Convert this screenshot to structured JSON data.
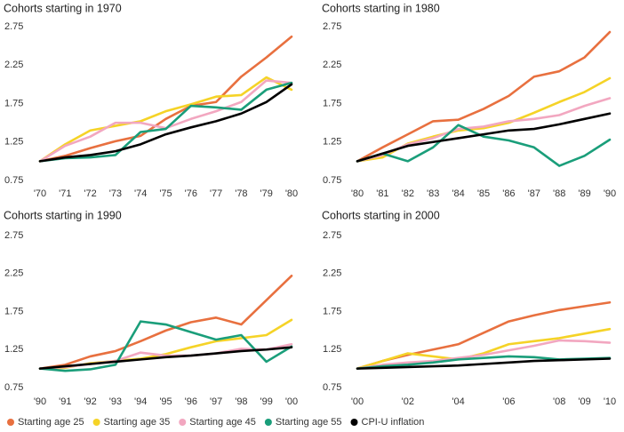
{
  "chart_data": [
    {
      "type": "line",
      "title": "Cohorts starting in 1970",
      "categories": [
        "'70",
        "'71",
        "'72",
        "'73",
        "'74",
        "'75",
        "'76",
        "'77",
        "'78",
        "'79",
        "'80"
      ],
      "ylim": [
        0.75,
        2.75
      ],
      "yticks": [
        0.75,
        1.25,
        1.75,
        2.25,
        2.75
      ],
      "series": [
        {
          "name": "Starting age 25",
          "color": "#e8703f",
          "values": [
            1.0,
            1.07,
            1.17,
            1.26,
            1.33,
            1.55,
            1.72,
            1.77,
            2.1,
            2.35,
            2.62
          ]
        },
        {
          "name": "Starting age 35",
          "color": "#f5d327",
          "values": [
            1.0,
            1.22,
            1.4,
            1.46,
            1.52,
            1.65,
            1.74,
            1.84,
            1.86,
            2.09,
            1.93
          ]
        },
        {
          "name": "Starting age 45",
          "color": "#f2a7c0",
          "values": [
            1.0,
            1.2,
            1.32,
            1.5,
            1.5,
            1.43,
            1.55,
            1.65,
            1.77,
            2.05,
            2.02
          ]
        },
        {
          "name": "Starting age 55",
          "color": "#1a9e7a",
          "values": [
            1.0,
            1.04,
            1.05,
            1.08,
            1.38,
            1.42,
            1.72,
            1.7,
            1.67,
            1.93,
            2.02
          ]
        },
        {
          "name": "CPI-U inflation",
          "color": "#000000",
          "values": [
            1.0,
            1.05,
            1.08,
            1.13,
            1.22,
            1.35,
            1.44,
            1.52,
            1.62,
            1.77,
            2.0
          ]
        }
      ]
    },
    {
      "type": "line",
      "title": "Cohorts starting in 1980",
      "categories": [
        "'80",
        "'81",
        "'82",
        "'83",
        "'84",
        "'85",
        "'86",
        "'87",
        "'88",
        "'89",
        "'90"
      ],
      "ylim": [
        0.75,
        2.75
      ],
      "yticks": [
        0.75,
        1.25,
        1.75,
        2.25,
        2.75
      ],
      "series": [
        {
          "name": "Starting age 25",
          "color": "#e8703f",
          "values": [
            1.0,
            1.18,
            1.35,
            1.52,
            1.54,
            1.68,
            1.85,
            2.1,
            2.17,
            2.35,
            2.68
          ]
        },
        {
          "name": "Starting age 35",
          "color": "#f5d327",
          "values": [
            1.0,
            1.05,
            1.23,
            1.32,
            1.4,
            1.43,
            1.5,
            1.63,
            1.77,
            1.9,
            2.08
          ]
        },
        {
          "name": "Starting age 45",
          "color": "#f2a7c0",
          "values": [
            1.0,
            1.08,
            1.22,
            1.3,
            1.42,
            1.45,
            1.52,
            1.55,
            1.6,
            1.72,
            1.82
          ]
        },
        {
          "name": "Starting age 55",
          "color": "#1a9e7a",
          "values": [
            1.0,
            1.1,
            1.0,
            1.18,
            1.47,
            1.32,
            1.27,
            1.18,
            0.94,
            1.07,
            1.28
          ]
        },
        {
          "name": "CPI-U inflation",
          "color": "#000000",
          "values": [
            1.0,
            1.1,
            1.2,
            1.25,
            1.3,
            1.35,
            1.4,
            1.42,
            1.48,
            1.55,
            1.62
          ]
        }
      ]
    },
    {
      "type": "line",
      "title": "Cohorts starting in 1990",
      "categories": [
        "'90",
        "'91",
        "'92",
        "'93",
        "'94",
        "'95",
        "'96",
        "'97",
        "'98",
        "'99",
        "'00"
      ],
      "ylim": [
        0.75,
        2.75
      ],
      "yticks": [
        0.75,
        1.25,
        1.75,
        2.25,
        2.75
      ],
      "series": [
        {
          "name": "Starting age 25",
          "color": "#e8703f",
          "values": [
            1.0,
            1.05,
            1.16,
            1.23,
            1.36,
            1.5,
            1.61,
            1.67,
            1.58,
            1.9,
            2.22
          ]
        },
        {
          "name": "Starting age 35",
          "color": "#f5d327",
          "values": [
            1.0,
            1.01,
            1.07,
            1.1,
            1.13,
            1.19,
            1.28,
            1.36,
            1.4,
            1.44,
            1.64
          ]
        },
        {
          "name": "Starting age 45",
          "color": "#f2a7c0",
          "values": [
            1.0,
            1.02,
            1.06,
            1.1,
            1.21,
            1.17,
            1.17,
            1.2,
            1.26,
            1.25,
            1.32
          ]
        },
        {
          "name": "Starting age 55",
          "color": "#1a9e7a",
          "values": [
            1.0,
            0.97,
            0.99,
            1.05,
            1.62,
            1.58,
            1.48,
            1.38,
            1.44,
            1.09,
            1.29
          ]
        },
        {
          "name": "CPI-U inflation",
          "color": "#000000",
          "values": [
            1.0,
            1.03,
            1.06,
            1.09,
            1.12,
            1.15,
            1.17,
            1.2,
            1.23,
            1.25,
            1.28
          ]
        }
      ]
    },
    {
      "type": "line",
      "title": "Cohorts starting in 2000",
      "categories": [
        "'00",
        null,
        "'02",
        null,
        "'04",
        null,
        "'06",
        null,
        "'08",
        "'09",
        "'10"
      ],
      "ylim": [
        0.75,
        2.75
      ],
      "yticks": [
        0.75,
        1.25,
        1.75,
        2.25,
        2.75
      ],
      "series": [
        {
          "name": "Starting age 25",
          "color": "#e8703f",
          "values": [
            1.0,
            1.1,
            1.18,
            1.25,
            1.32,
            1.47,
            1.62,
            1.7,
            1.77,
            1.82,
            1.87
          ]
        },
        {
          "name": "Starting age 35",
          "color": "#f5d327",
          "values": [
            1.0,
            1.1,
            1.2,
            1.16,
            1.12,
            1.2,
            1.32,
            1.36,
            1.4,
            1.46,
            1.52
          ]
        },
        {
          "name": "Starting age 45",
          "color": "#f2a7c0",
          "values": [
            1.0,
            1.05,
            1.08,
            1.1,
            1.14,
            1.18,
            1.24,
            1.3,
            1.37,
            1.36,
            1.34
          ]
        },
        {
          "name": "Starting age 55",
          "color": "#1a9e7a",
          "values": [
            1.0,
            1.03,
            1.05,
            1.08,
            1.12,
            1.14,
            1.16,
            1.15,
            1.12,
            1.13,
            1.14
          ]
        },
        {
          "name": "CPI-U inflation",
          "color": "#000000",
          "values": [
            1.0,
            1.01,
            1.02,
            1.03,
            1.04,
            1.06,
            1.08,
            1.1,
            1.11,
            1.12,
            1.13
          ]
        }
      ]
    }
  ]
}
